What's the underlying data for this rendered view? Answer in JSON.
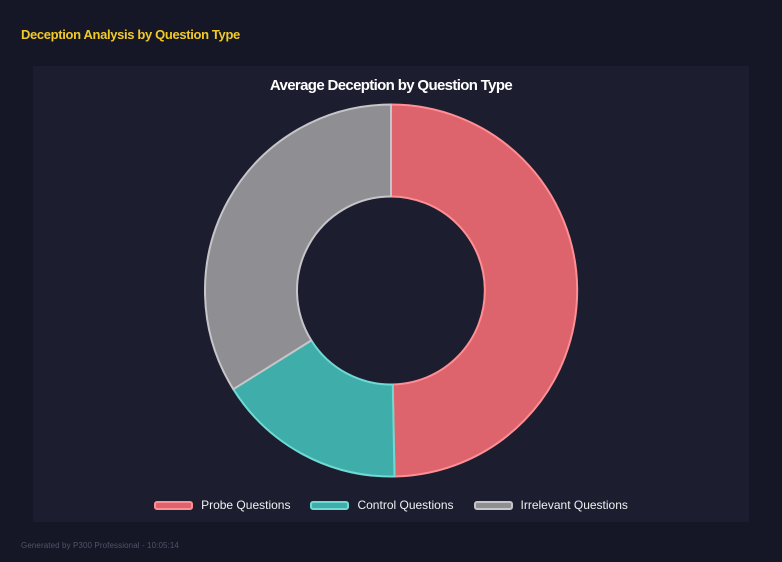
{
  "page": {
    "title": "Deception Analysis by Question Type",
    "footer": "Generated by P300 Professional - 10:05:14"
  },
  "chart_data": {
    "type": "doughnut",
    "title": "Average Deception by Question Type",
    "categories": [
      "Probe Questions",
      "Control Questions",
      "Irrelevant Questions"
    ],
    "values": [
      49.7,
      16.4,
      33.9
    ],
    "values_unit": "percent of circle (estimated from arc angles; no numeric labels shown)",
    "colors": [
      "#dd636c",
      "#3fada9",
      "#8e8e93"
    ],
    "border_colors": [
      "#ff8f94",
      "#6fd9d3",
      "#c6c6ca"
    ],
    "legend_position": "bottom",
    "cutout": "50%"
  },
  "theme": {
    "page_bg": "#151726",
    "panel_bg": "#1c1e30",
    "title_color": "#f2ca27",
    "text_color": "#ffffff",
    "footer_color": "#50546a"
  }
}
